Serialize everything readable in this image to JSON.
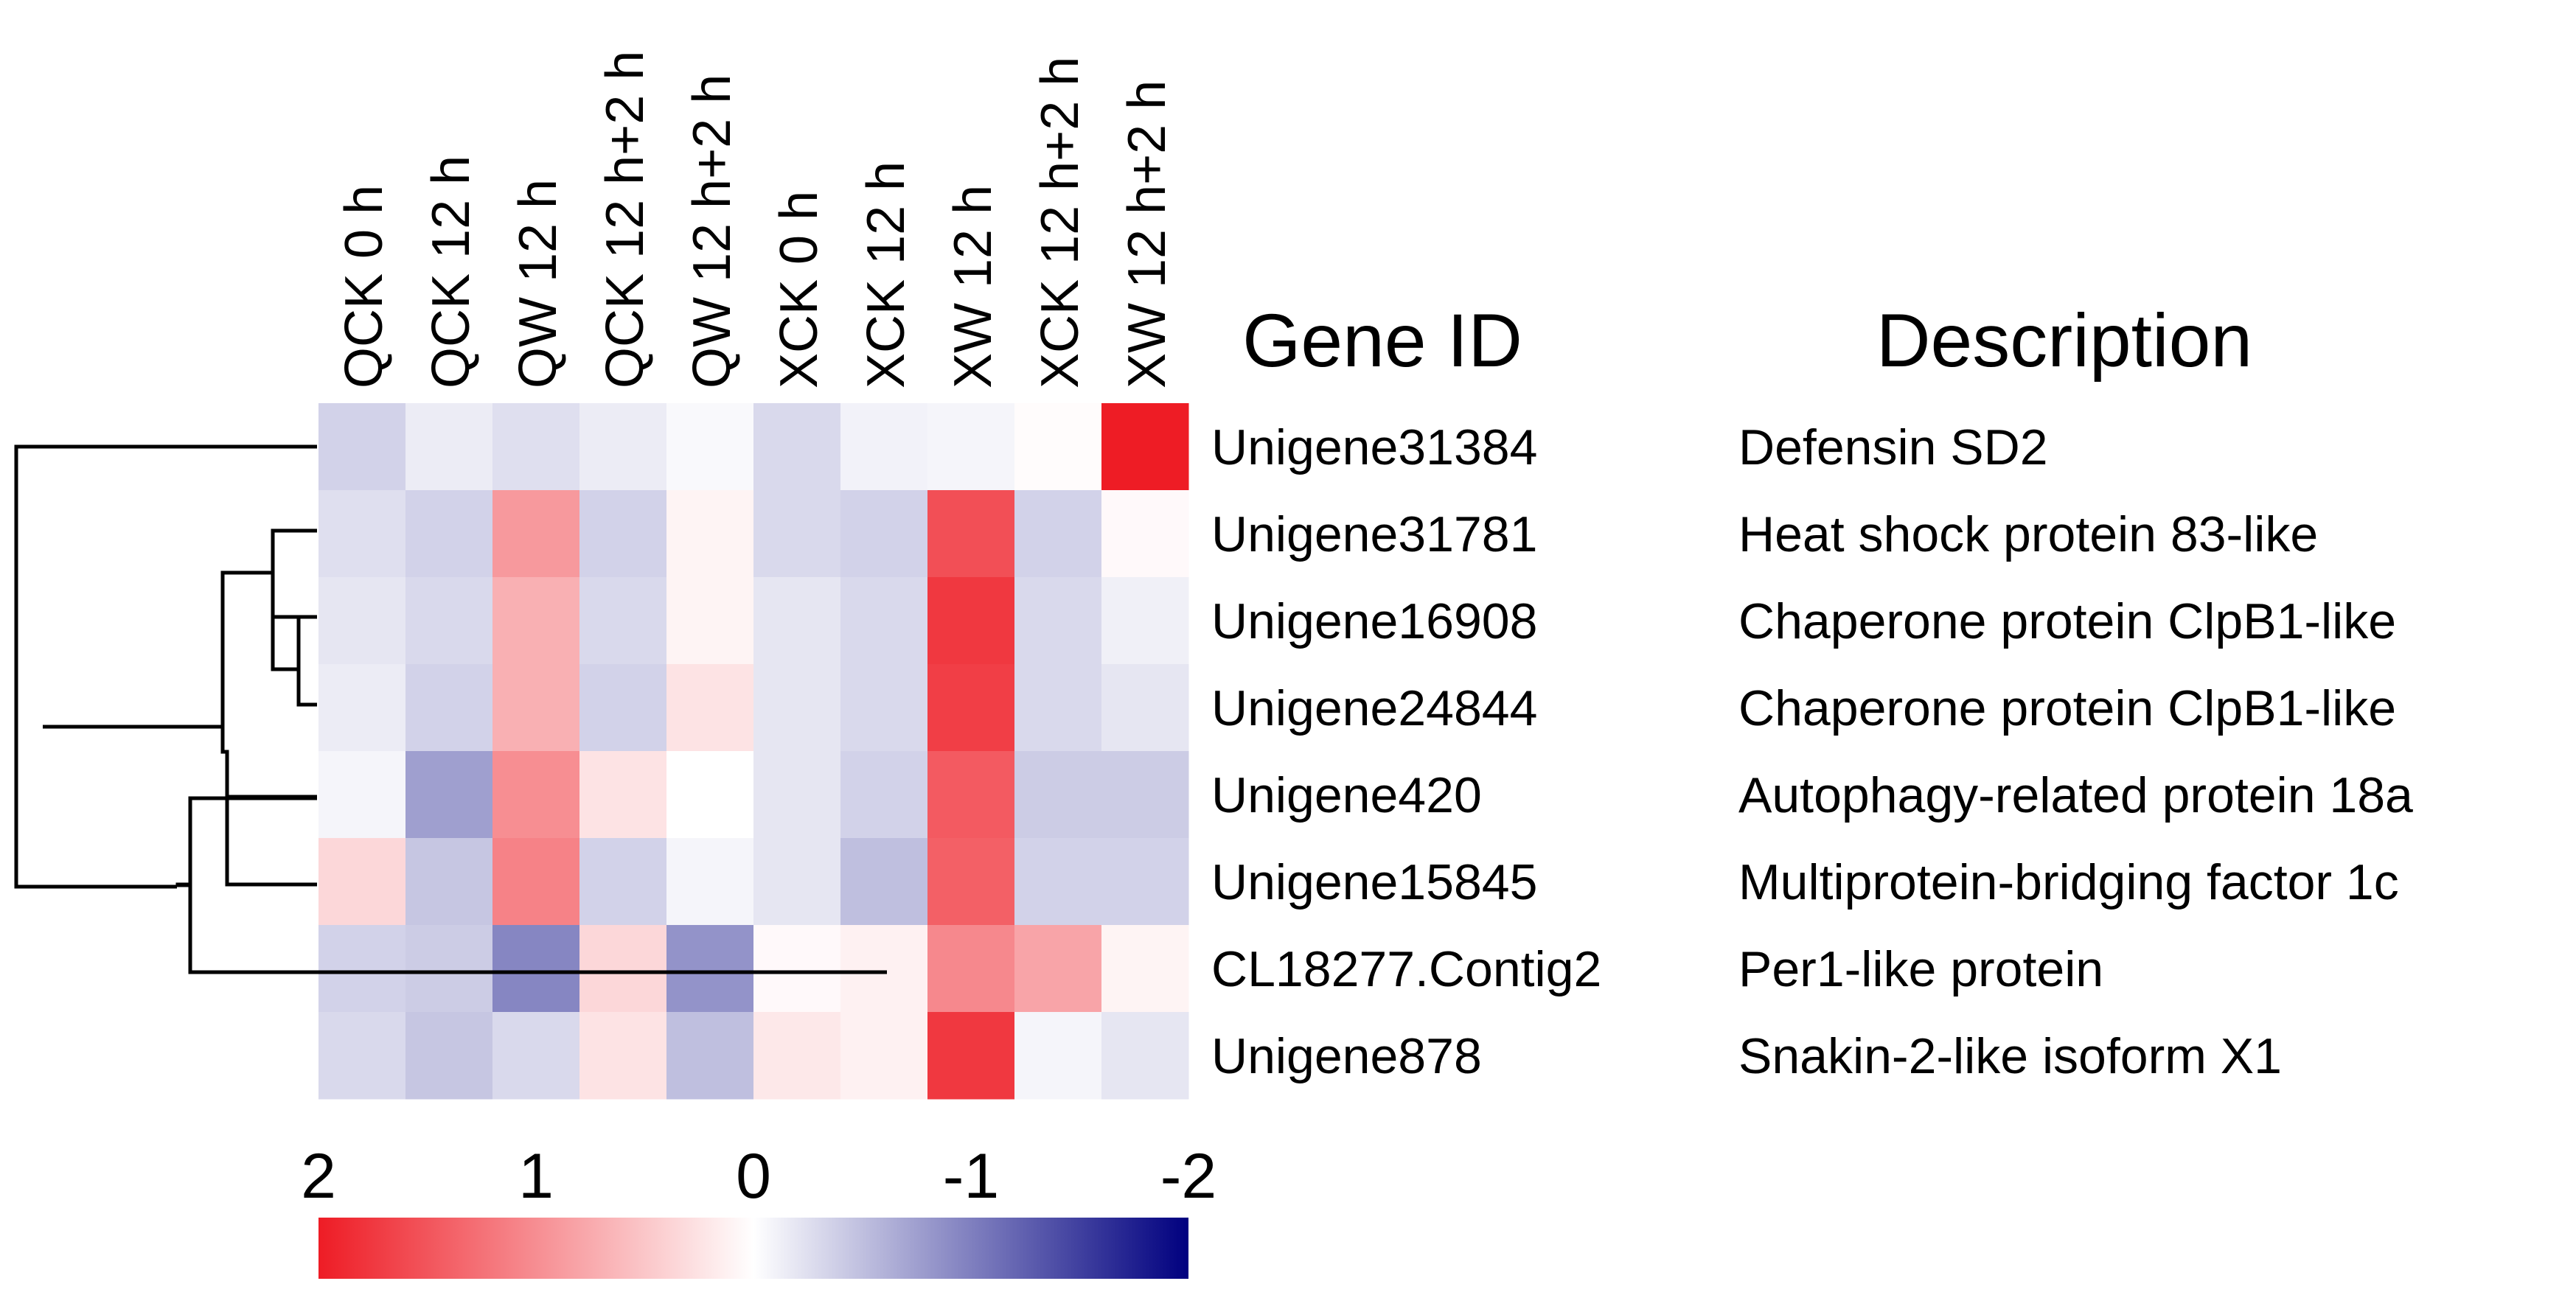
{
  "chart_data": {
    "type": "heatmap",
    "columns": [
      "QCK 0 h",
      "QCK 12 h",
      "QW 12 h",
      "QCK 12 h+2 h",
      "QW 12 h+2 h",
      "XCK 0 h",
      "XCK 12 h",
      "XW 12 h",
      "XCK 12 h+2 h",
      "XW 12 h+2 h"
    ],
    "gene_id_header": "Gene ID",
    "description_header": "Description",
    "rows": [
      {
        "gene_id": "Unigene31384",
        "description": "Defensin SD2",
        "values": [
          -0.35,
          -0.15,
          -0.25,
          -0.15,
          -0.05,
          -0.3,
          -0.1,
          -0.08,
          0.03,
          2.0
        ]
      },
      {
        "gene_id": "Unigene31781",
        "description": "Heat shock protein 83-like",
        "values": [
          -0.25,
          -0.35,
          0.9,
          -0.35,
          0.1,
          -0.3,
          -0.35,
          1.55,
          -0.35,
          0.05
        ]
      },
      {
        "gene_id": "Unigene16908",
        "description": "Chaperone protein ClpB1-like",
        "values": [
          -0.2,
          -0.3,
          0.7,
          -0.3,
          0.1,
          -0.2,
          -0.3,
          1.75,
          -0.3,
          -0.12
        ]
      },
      {
        "gene_id": "Unigene24844",
        "description": "Chaperone protein ClpB1-like",
        "values": [
          -0.15,
          -0.35,
          0.7,
          -0.35,
          0.25,
          -0.2,
          -0.3,
          1.7,
          -0.3,
          -0.2
        ]
      },
      {
        "gene_id": "Unigene420",
        "description": "Autophagy-related protein 18a",
        "values": [
          -0.08,
          -0.75,
          1.0,
          0.25,
          0.0,
          -0.2,
          -0.35,
          1.45,
          -0.4,
          -0.4
        ]
      },
      {
        "gene_id": "Unigene15845",
        "description": "Multiprotein-bridging factor 1c",
        "values": [
          0.35,
          -0.45,
          1.1,
          -0.35,
          -0.08,
          -0.2,
          -0.5,
          1.4,
          -0.35,
          -0.35
        ]
      },
      {
        "gene_id": "CL18277.Contig2",
        "description": "Per1-like protein",
        "values": [
          -0.35,
          -0.4,
          -0.95,
          0.35,
          -0.85,
          0.05,
          0.12,
          1.05,
          0.8,
          0.1
        ]
      },
      {
        "gene_id": "Unigene878",
        "description": "Snakin-2-like isoform X1",
        "values": [
          -0.3,
          -0.45,
          -0.3,
          0.25,
          -0.5,
          0.2,
          0.12,
          1.75,
          -0.08,
          -0.2
        ]
      }
    ],
    "color_scale": {
      "ticks": [
        "2",
        "1",
        "0",
        "-1",
        "-2"
      ],
      "range": [
        2,
        -2
      ],
      "high_color": "#ee1c25",
      "mid_color": "#ffffff",
      "low_color": "#00007f"
    },
    "row_dendrogram": "hierarchical clustering of 8 genes"
  }
}
